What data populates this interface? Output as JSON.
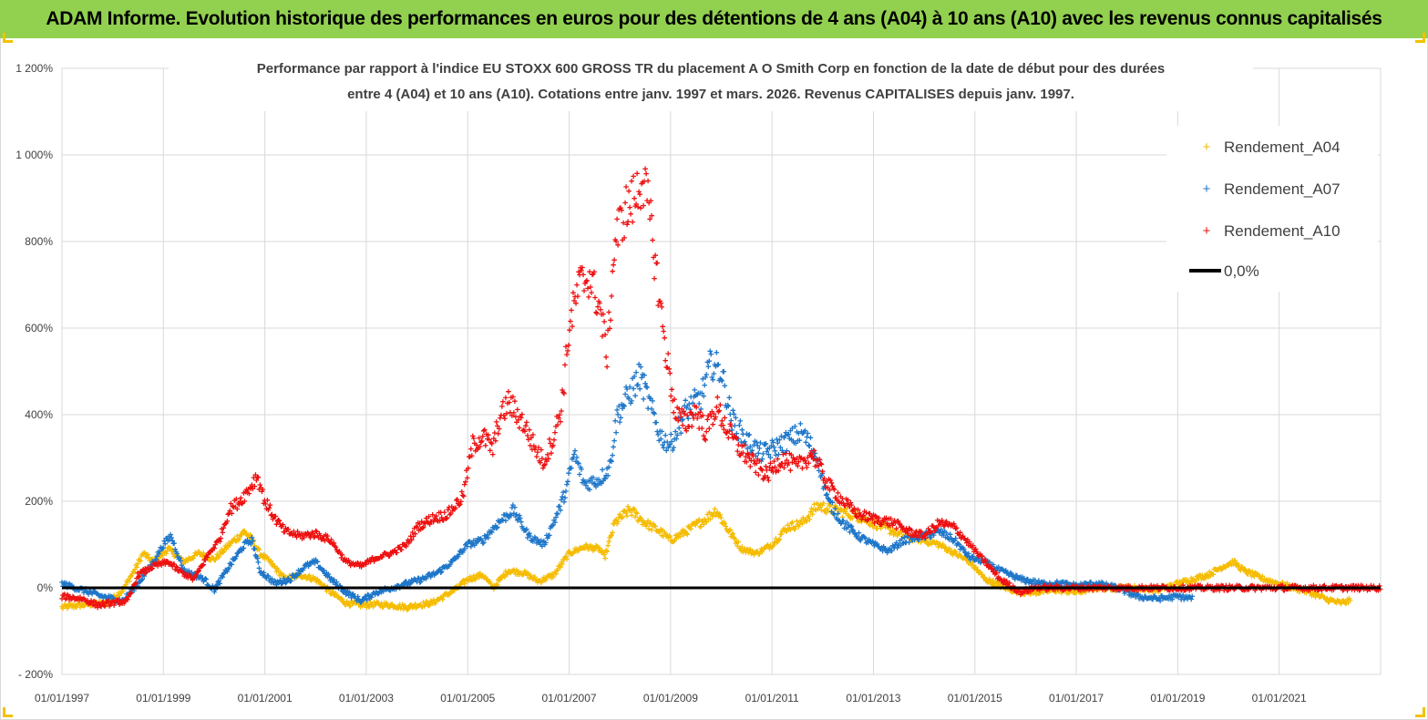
{
  "banner": {
    "title": "ADAM Informe. Evolution historique des performances en euros pour des détentions de 4 ans (A04) à 10 ans (A10) avec les revenus connus capitalisés"
  },
  "colors": {
    "banner": "#92d050",
    "a04": "#f5bc00",
    "a07": "#1f77c9",
    "a10": "#ee1111",
    "zero": "#000000",
    "grid": "#d9d9d9"
  },
  "chart_data": {
    "type": "scatter",
    "title_lines": [
      "Performance par rapport à l'indice EU STOXX 600 GROSS TR  du placement A O Smith Corp en fonction de la date de début pour des durées",
      "entre 4 (A04) et 10 ans (A10). Cotations entre janv. 1997 et mars. 2026. Revenus CAPITALISES depuis janv. 1997."
    ],
    "x_tick_labels": [
      "01/01/1997",
      "01/01/1999",
      "01/01/2001",
      "01/01/2003",
      "01/01/2005",
      "01/01/2007",
      "01/01/2009",
      "01/01/2011",
      "01/01/2013",
      "01/01/2015",
      "01/01/2017",
      "01/01/2019",
      "01/01/2021"
    ],
    "x_range": [
      "1997-01-01",
      "2023-01-01"
    ],
    "y_tick_labels": [
      "- 200%",
      "0%",
      "200%",
      "400%",
      "600%",
      "800%",
      "1 000%",
      "1 200%"
    ],
    "y_range": [
      -200,
      1200
    ],
    "y_unit": "%",
    "grid": true,
    "legend_position": "top-right",
    "legend": [
      "Rendement_A04",
      "Rendement_A07",
      "Rendement_A10",
      "0,0%"
    ],
    "series": [
      {
        "name": "Rendement_A04",
        "color": "#f5bc00",
        "end": 2022.4,
        "points": [
          [
            1997.0,
            -45
          ],
          [
            1997.5,
            -38
          ],
          [
            1997.9,
            -35
          ],
          [
            1998.2,
            -5
          ],
          [
            1998.45,
            45
          ],
          [
            1998.6,
            80
          ],
          [
            1998.8,
            60
          ],
          [
            1999.1,
            90
          ],
          [
            1999.4,
            60
          ],
          [
            1999.7,
            80
          ],
          [
            2000.0,
            65
          ],
          [
            2000.3,
            100
          ],
          [
            2000.6,
            130
          ],
          [
            2000.75,
            110
          ],
          [
            2000.9,
            80
          ],
          [
            2001.1,
            60
          ],
          [
            2001.4,
            20
          ],
          [
            2001.7,
            30
          ],
          [
            2002.0,
            20
          ],
          [
            2002.3,
            -10
          ],
          [
            2002.6,
            -35
          ],
          [
            2002.9,
            -40
          ],
          [
            2003.2,
            -38
          ],
          [
            2003.5,
            -40
          ],
          [
            2003.8,
            -45
          ],
          [
            2004.0,
            -40
          ],
          [
            2004.3,
            -35
          ],
          [
            2004.6,
            -15
          ],
          [
            2004.8,
            0
          ],
          [
            2005.0,
            20
          ],
          [
            2005.3,
            30
          ],
          [
            2005.5,
            0
          ],
          [
            2005.8,
            40
          ],
          [
            2006.1,
            35
          ],
          [
            2006.4,
            15
          ],
          [
            2006.7,
            30
          ],
          [
            2007.0,
            80
          ],
          [
            2007.3,
            95
          ],
          [
            2007.6,
            90
          ],
          [
            2007.7,
            70
          ],
          [
            2007.9,
            150
          ],
          [
            2008.2,
            180
          ],
          [
            2008.5,
            150
          ],
          [
            2008.8,
            130
          ],
          [
            2009.0,
            110
          ],
          [
            2009.3,
            130
          ],
          [
            2009.5,
            145
          ],
          [
            2009.7,
            160
          ],
          [
            2009.9,
            180
          ],
          [
            2010.1,
            140
          ],
          [
            2010.4,
            90
          ],
          [
            2010.7,
            80
          ],
          [
            2011.0,
            100
          ],
          [
            2011.3,
            140
          ],
          [
            2011.6,
            150
          ],
          [
            2011.9,
            190
          ],
          [
            2012.2,
            180
          ],
          [
            2012.6,
            170
          ],
          [
            2013.0,
            150
          ],
          [
            2013.3,
            135
          ],
          [
            2013.6,
            120
          ],
          [
            2014.0,
            110
          ],
          [
            2014.3,
            100
          ],
          [
            2014.6,
            80
          ],
          [
            2014.9,
            60
          ],
          [
            2015.2,
            20
          ],
          [
            2015.6,
            0
          ],
          [
            2015.9,
            -10
          ],
          [
            2016.2,
            -10
          ],
          [
            2016.6,
            -5
          ],
          [
            2017.0,
            -10
          ],
          [
            2017.4,
            0
          ],
          [
            2017.8,
            0
          ],
          [
            2018.2,
            0
          ],
          [
            2018.6,
            -5
          ],
          [
            2019.0,
            10
          ],
          [
            2019.3,
            20
          ],
          [
            2019.6,
            30
          ],
          [
            2019.9,
            50
          ],
          [
            2020.1,
            60
          ],
          [
            2020.3,
            40
          ],
          [
            2020.7,
            20
          ],
          [
            2021.0,
            10
          ],
          [
            2021.3,
            0
          ],
          [
            2021.6,
            -10
          ],
          [
            2021.9,
            -25
          ],
          [
            2022.2,
            -35
          ],
          [
            2022.4,
            -30
          ]
        ]
      },
      {
        "name": "Rendement_A07",
        "color": "#1f77c9",
        "end": 2019.3,
        "points": [
          [
            1997.0,
            10
          ],
          [
            1997.4,
            -5
          ],
          [
            1997.8,
            -20
          ],
          [
            1998.2,
            -30
          ],
          [
            1998.5,
            10
          ],
          [
            1998.8,
            60
          ],
          [
            1999.0,
            100
          ],
          [
            1999.15,
            120
          ],
          [
            1999.4,
            40
          ],
          [
            1999.8,
            20
          ],
          [
            2000.0,
            -5
          ],
          [
            2000.3,
            50
          ],
          [
            2000.6,
            100
          ],
          [
            2000.75,
            110
          ],
          [
            2000.9,
            40
          ],
          [
            2001.2,
            10
          ],
          [
            2001.5,
            20
          ],
          [
            2001.8,
            50
          ],
          [
            2002.0,
            60
          ],
          [
            2002.3,
            20
          ],
          [
            2002.6,
            -10
          ],
          [
            2002.9,
            -30
          ],
          [
            2003.2,
            -10
          ],
          [
            2003.5,
            0
          ],
          [
            2003.8,
            10
          ],
          [
            2004.1,
            20
          ],
          [
            2004.4,
            35
          ],
          [
            2004.7,
            60
          ],
          [
            2005.0,
            100
          ],
          [
            2005.3,
            110
          ],
          [
            2005.6,
            150
          ],
          [
            2005.9,
            180
          ],
          [
            2006.2,
            120
          ],
          [
            2006.5,
            100
          ],
          [
            2006.8,
            180
          ],
          [
            2006.95,
            230
          ],
          [
            2007.1,
            310
          ],
          [
            2007.3,
            240
          ],
          [
            2007.6,
            250
          ],
          [
            2007.8,
            280
          ],
          [
            2007.95,
            400
          ],
          [
            2008.2,
            450
          ],
          [
            2008.4,
            490
          ],
          [
            2008.6,
            420
          ],
          [
            2008.8,
            350
          ],
          [
            2009.0,
            330
          ],
          [
            2009.3,
            410
          ],
          [
            2009.6,
            440
          ],
          [
            2009.8,
            520
          ],
          [
            2010.0,
            500
          ],
          [
            2010.2,
            390
          ],
          [
            2010.5,
            340
          ],
          [
            2010.8,
            310
          ],
          [
            2011.0,
            320
          ],
          [
            2011.3,
            340
          ],
          [
            2011.6,
            360
          ],
          [
            2011.9,
            300
          ],
          [
            2012.1,
            200
          ],
          [
            2012.4,
            150
          ],
          [
            2012.7,
            120
          ],
          [
            2013.0,
            100
          ],
          [
            2013.3,
            85
          ],
          [
            2013.6,
            110
          ],
          [
            2014.0,
            120
          ],
          [
            2014.3,
            130
          ],
          [
            2014.6,
            110
          ],
          [
            2014.9,
            70
          ],
          [
            2015.2,
            60
          ],
          [
            2015.5,
            40
          ],
          [
            2015.9,
            20
          ],
          [
            2016.3,
            10
          ],
          [
            2016.7,
            10
          ],
          [
            2017.0,
            5
          ],
          [
            2017.4,
            10
          ],
          [
            2017.8,
            0
          ],
          [
            2018.2,
            -20
          ],
          [
            2018.6,
            -25
          ],
          [
            2019.0,
            -20
          ],
          [
            2019.3,
            -25
          ]
        ]
      },
      {
        "name": "Rendement_A10",
        "color": "#ee1111",
        "end": 2023.0,
        "points": [
          [
            1997.0,
            -20
          ],
          [
            1997.4,
            -25
          ],
          [
            1997.7,
            -40
          ],
          [
            1998.0,
            -35
          ],
          [
            1998.3,
            -30
          ],
          [
            1998.5,
            30
          ],
          [
            1998.8,
            50
          ],
          [
            1999.1,
            60
          ],
          [
            1999.3,
            40
          ],
          [
            1999.6,
            20
          ],
          [
            1999.9,
            80
          ],
          [
            2000.1,
            110
          ],
          [
            2000.3,
            180
          ],
          [
            2000.5,
            200
          ],
          [
            2000.7,
            230
          ],
          [
            2000.85,
            260
          ],
          [
            2001.0,
            200
          ],
          [
            2001.2,
            160
          ],
          [
            2001.4,
            130
          ],
          [
            2001.7,
            120
          ],
          [
            2002.0,
            125
          ],
          [
            2002.3,
            110
          ],
          [
            2002.6,
            60
          ],
          [
            2002.9,
            50
          ],
          [
            2003.2,
            70
          ],
          [
            2003.5,
            80
          ],
          [
            2003.8,
            100
          ],
          [
            2004.0,
            140
          ],
          [
            2004.3,
            160
          ],
          [
            2004.6,
            170
          ],
          [
            2004.9,
            210
          ],
          [
            2005.1,
            330
          ],
          [
            2005.3,
            350
          ],
          [
            2005.5,
            320
          ],
          [
            2005.6,
            380
          ],
          [
            2005.8,
            430
          ],
          [
            2006.1,
            380
          ],
          [
            2006.3,
            330
          ],
          [
            2006.5,
            290
          ],
          [
            2006.7,
            350
          ],
          [
            2006.85,
            420
          ],
          [
            2007.0,
            600
          ],
          [
            2007.2,
            700
          ],
          [
            2007.4,
            720
          ],
          [
            2007.6,
            650
          ],
          [
            2007.75,
            540
          ],
          [
            2007.9,
            800
          ],
          [
            2008.1,
            870
          ],
          [
            2008.3,
            900
          ],
          [
            2008.45,
            950
          ],
          [
            2008.6,
            850
          ],
          [
            2008.75,
            700
          ],
          [
            2008.9,
            550
          ],
          [
            2009.1,
            400
          ],
          [
            2009.3,
            380
          ],
          [
            2009.5,
            410
          ],
          [
            2009.7,
            360
          ],
          [
            2009.9,
            420
          ],
          [
            2010.1,
            370
          ],
          [
            2010.3,
            330
          ],
          [
            2010.6,
            290
          ],
          [
            2010.9,
            260
          ],
          [
            2011.2,
            300
          ],
          [
            2011.5,
            280
          ],
          [
            2011.8,
            310
          ],
          [
            2012.1,
            240
          ],
          [
            2012.4,
            200
          ],
          [
            2012.7,
            170
          ],
          [
            2013.0,
            160
          ],
          [
            2013.4,
            150
          ],
          [
            2013.7,
            130
          ],
          [
            2014.0,
            120
          ],
          [
            2014.3,
            150
          ],
          [
            2014.6,
            140
          ],
          [
            2014.9,
            100
          ],
          [
            2015.2,
            60
          ],
          [
            2015.5,
            20
          ],
          [
            2015.9,
            -10
          ],
          [
            2016.2,
            0
          ],
          [
            2016.6,
            0
          ],
          [
            2017.0,
            0
          ],
          [
            2017.5,
            0
          ],
          [
            2018.0,
            0
          ],
          [
            2018.5,
            0
          ],
          [
            2019.0,
            0
          ],
          [
            2019.5,
            0
          ],
          [
            2020.0,
            0
          ],
          [
            2020.5,
            0
          ],
          [
            2021.0,
            0
          ],
          [
            2021.5,
            0
          ],
          [
            2022.0,
            0
          ],
          [
            2022.5,
            0
          ],
          [
            2023.0,
            0
          ]
        ]
      }
    ],
    "zero_line_value": 0
  }
}
